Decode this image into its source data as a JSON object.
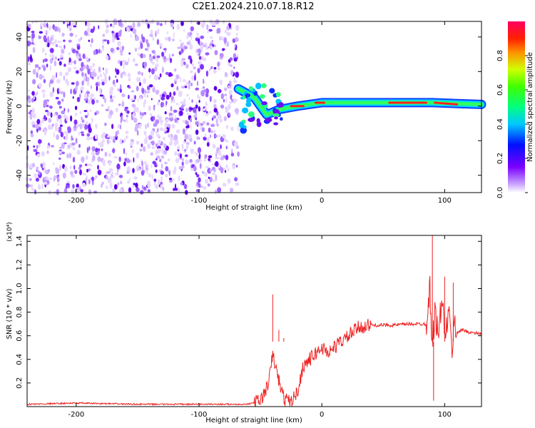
{
  "title": "C2E1.2024.210.07.18.R12",
  "chart_data": [
    {
      "type": "heatmap",
      "xlabel": "Height of straight line (km)",
      "ylabel": "Frequency (Hz)",
      "xlim": [
        -240,
        130
      ],
      "ylim": [
        -50,
        49
      ],
      "xticks": [
        "-200",
        "-100",
        "0",
        "100"
      ],
      "yticks": [
        "-40",
        "-20",
        "0",
        "20",
        "40"
      ],
      "colorbar": {
        "label": "Normalized spectral amplitude",
        "range": [
          0,
          1
        ],
        "ticks": [
          "0.0",
          "0.2",
          "0.4",
          "0.6",
          "0.8"
        ]
      },
      "signal_track": [
        {
          "x": -68,
          "y": 10
        },
        {
          "x": -55,
          "y": 5
        },
        {
          "x": -45,
          "y": -5
        },
        {
          "x": -35,
          "y": -2
        },
        {
          "x": -20,
          "y": 0
        },
        {
          "x": 0,
          "y": 2
        },
        {
          "x": 50,
          "y": 2
        },
        {
          "x": 90,
          "y": 2
        },
        {
          "x": 130,
          "y": 1
        }
      ],
      "noise_region_x": [
        -240,
        -68
      ]
    },
    {
      "type": "line",
      "xlabel": "Height of straight line (km)",
      "ylabel": "SNR (10 * v/v)",
      "y_multiplier": "(x10⁴)",
      "xlim": [
        -240,
        130
      ],
      "ylim": [
        0,
        1.45
      ],
      "xticks": [
        "-200",
        "-100",
        "0",
        "100"
      ],
      "yticks": [
        "0.2",
        "0.4",
        "0.6",
        "0.8",
        "1.0",
        "1.2",
        "1.4"
      ],
      "series": [
        {
          "color": "#ee2222",
          "x": [
            -240,
            -200,
            -150,
            -100,
            -60,
            -50,
            -45,
            -42,
            -40,
            -38,
            -35,
            -32,
            -30,
            -25,
            -20,
            -15,
            -10,
            -5,
            0,
            5,
            10,
            15,
            20,
            25,
            30,
            40,
            50,
            60,
            70,
            80,
            85,
            88,
            90,
            92,
            95,
            98,
            100,
            103,
            106,
            108,
            110,
            115,
            120,
            125,
            130
          ],
          "values": [
            0.02,
            0.03,
            0.02,
            0.02,
            0.02,
            0.05,
            0.15,
            0.28,
            0.45,
            0.35,
            0.22,
            0.1,
            0.06,
            0.04,
            0.12,
            0.35,
            0.4,
            0.45,
            0.5,
            0.46,
            0.5,
            0.55,
            0.58,
            0.63,
            0.67,
            0.69,
            0.69,
            0.69,
            0.7,
            0.7,
            0.7,
            1.0,
            0.5,
            0.8,
            0.6,
            0.95,
            0.55,
            0.8,
            0.5,
            0.7,
            0.63,
            0.65,
            0.63,
            0.62,
            0.62
          ],
          "spikes": [
            {
              "x": -40,
              "value": 0.95
            },
            {
              "x": -35,
              "value": 0.65
            },
            {
              "x": -31,
              "value": 0.58
            },
            {
              "x": 90,
              "value": 1.45
            },
            {
              "x": 91,
              "value": 0.05
            },
            {
              "x": 100,
              "value": 1.1
            },
            {
              "x": 107,
              "value": 1.05
            }
          ]
        }
      ]
    }
  ]
}
